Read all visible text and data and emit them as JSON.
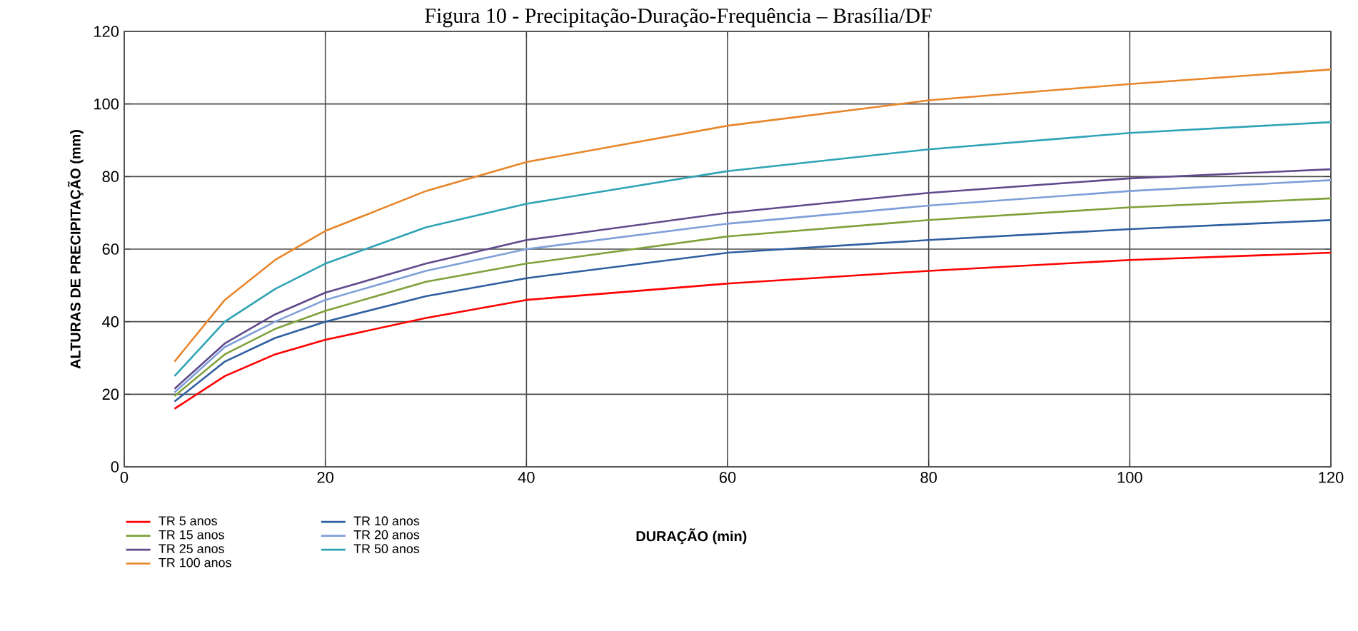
{
  "chart_data": {
    "type": "line",
    "title": "Figura 10 - Precipitação-Duração-Frequência – Brasília/DF",
    "xlabel": "DURAÇÃO (min)",
    "ylabel": "ALTURAS DE PRECIPITAÇÃO (mm)",
    "x": [
      5,
      10,
      15,
      20,
      30,
      40,
      60,
      80,
      100,
      120
    ],
    "xlim": [
      0,
      120
    ],
    "ylim": [
      0,
      120
    ],
    "xticks": [
      0,
      20,
      40,
      60,
      80,
      100,
      120
    ],
    "yticks": [
      0,
      20,
      40,
      60,
      80,
      100,
      120
    ],
    "grid": true,
    "legend": "bottom",
    "marker": "none",
    "line_style": "solid",
    "series": [
      {
        "name": "TR 5 anos",
        "color": "#ff0000",
        "values": [
          16,
          25,
          31,
          35,
          41,
          46,
          50.5,
          54,
          57,
          59
        ]
      },
      {
        "name": "TR 10 anos",
        "color": "#2e5fa0",
        "values": [
          18,
          29,
          35.5,
          40,
          47,
          52,
          59,
          62.5,
          65.5,
          68
        ]
      },
      {
        "name": "TR 15 anos",
        "color": "#7fa13a",
        "values": [
          19.5,
          31,
          38,
          43,
          51,
          56,
          63.5,
          68,
          71.5,
          74
        ]
      },
      {
        "name": "TR 20 anos",
        "color": "#7f9fd8",
        "values": [
          20.5,
          33,
          40,
          46,
          54,
          60,
          67,
          72,
          76,
          79
        ]
      },
      {
        "name": "TR 25 anos",
        "color": "#604a8c",
        "values": [
          21.5,
          34,
          42,
          48,
          56,
          62.5,
          70,
          75.5,
          79.5,
          82
        ]
      },
      {
        "name": "TR 50 anos",
        "color": "#2ea3b5",
        "values": [
          25,
          40,
          49,
          56,
          66,
          72.5,
          81.5,
          87.5,
          92,
          95
        ]
      },
      {
        "name": "TR 100 anos",
        "color": "#e8862a",
        "values": [
          29,
          46,
          57,
          65,
          76,
          84,
          94,
          101,
          105.5,
          109.5
        ]
      }
    ]
  }
}
